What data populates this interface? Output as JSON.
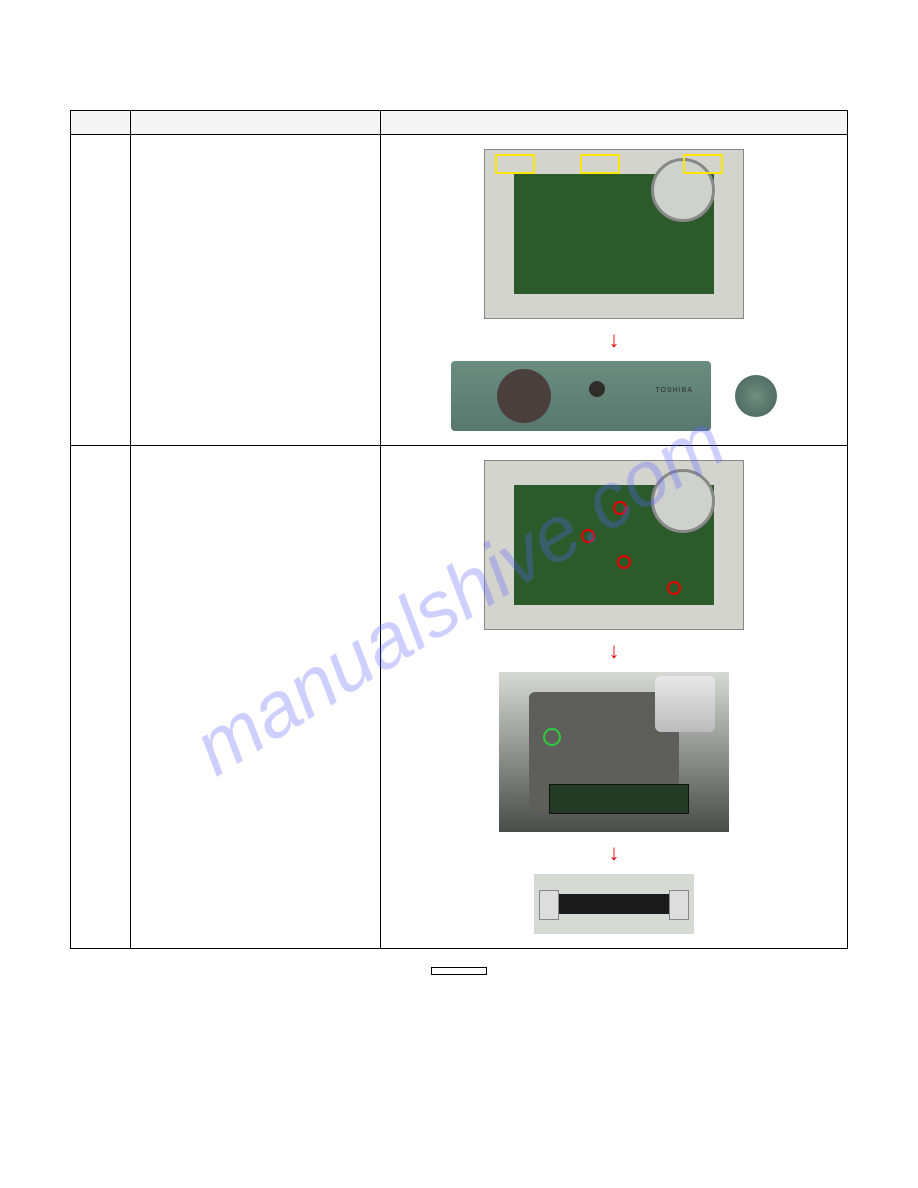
{
  "watermark": "manualshive.com",
  "page_number": "",
  "rows": [
    {
      "step": "",
      "desc": ""
    },
    {
      "step": "",
      "desc": ""
    }
  ],
  "panel_label": "TOSHIBA",
  "highlight_colors": {
    "yellow": "#ffe600",
    "red": "#e60000",
    "green": "#2ecc40"
  },
  "background_color": "#ffffff",
  "photo_bg": "#d4d4cf",
  "pcb_color": "#2c5a2a",
  "panel_gradient": [
    "#6a8d80",
    "#58786e"
  ]
}
